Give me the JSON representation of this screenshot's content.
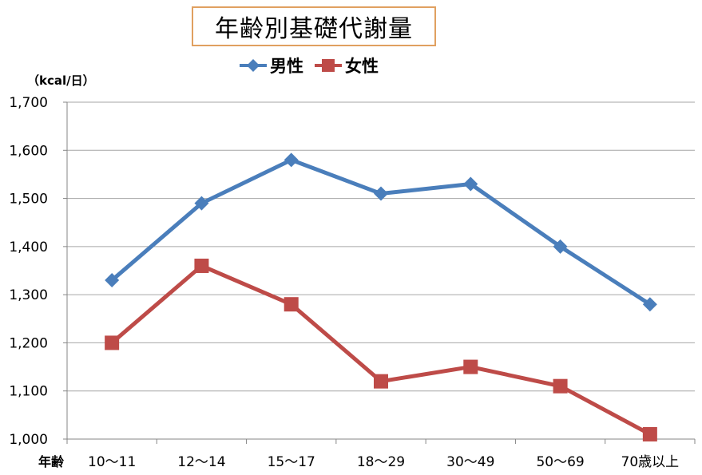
{
  "chart_data": {
    "type": "line",
    "title": "年齢別基礎代謝量",
    "ylabel": "（kcal/日）",
    "xlabel": "年齢",
    "categories": [
      "10～11",
      "12～14",
      "15～17",
      "18～29",
      "30～49",
      "50～69",
      "70歳以上"
    ],
    "ylim": [
      1000,
      1700
    ],
    "yticks": [
      1000,
      1100,
      1200,
      1300,
      1400,
      1500,
      1600,
      1700
    ],
    "ytick_labels": [
      "1,000",
      "1,100",
      "1,200",
      "1,300",
      "1,400",
      "1,500",
      "1,600",
      "1,700"
    ],
    "grid": "horizontal",
    "legend_position": "top",
    "series": [
      {
        "name": "男性",
        "values": [
          1330,
          1490,
          1580,
          1510,
          1530,
          1400,
          1280
        ],
        "color": "#4a7ebb",
        "marker": "diamond"
      },
      {
        "name": "女性",
        "values": [
          1200,
          1360,
          1280,
          1120,
          1150,
          1110,
          1010
        ],
        "color": "#be4b48",
        "marker": "square"
      }
    ]
  }
}
